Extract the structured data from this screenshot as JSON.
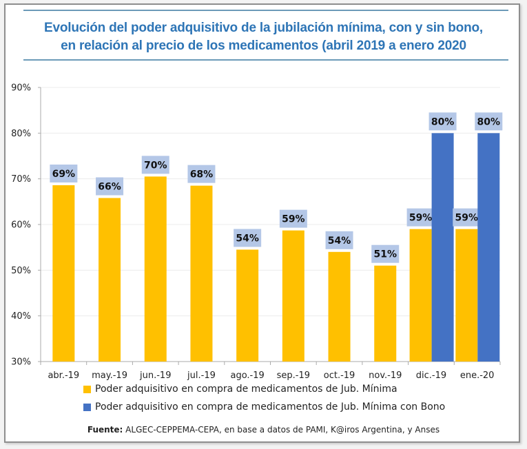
{
  "chart_data": {
    "type": "bar",
    "title": "Evolución del poder adquisitivo de la jubilación mínima, con y sin bono, en relación al precio de los medicamentos (abril 2019 a enero 2020",
    "title_lines": [
      "Evolución del poder adquisitivo de la jubilación mínima, con y sin bono,",
      "en relación al precio de los medicamentos (abril 2019 a enero 2020"
    ],
    "categories": [
      "abr.-19",
      "may.-19",
      "jun.-19",
      "jul.-19",
      "ago.-19",
      "sep.-19",
      "oct.-19",
      "nov.-19",
      "dic.-19",
      "ene.-20"
    ],
    "series": [
      {
        "name": "Poder adquisitivo en compra de medicamentos de Jub. Mínima",
        "color": "#ffc000",
        "values": [
          68.6,
          65.8,
          70.5,
          68.5,
          54.5,
          58.7,
          54.0,
          51.0,
          59.0,
          59.0
        ],
        "labels": [
          "69%",
          "66%",
          "70%",
          "68%",
          "54%",
          "59%",
          "54%",
          "51%",
          "59%",
          "59%"
        ]
      },
      {
        "name": "Poder adquisitivo en compra de medicamentos de Jub. Mínima con Bono",
        "color": "#4472c4",
        "values": [
          null,
          null,
          null,
          null,
          null,
          null,
          null,
          null,
          80.0,
          80.0
        ],
        "labels": [
          null,
          null,
          null,
          null,
          null,
          null,
          null,
          null,
          "80%",
          "80%"
        ]
      }
    ],
    "xlabel": "",
    "ylabel": "",
    "ylim": [
      30,
      90
    ],
    "yticks": [
      30,
      40,
      50,
      60,
      70,
      80,
      90
    ],
    "ytick_labels": [
      "30%",
      "40%",
      "50%",
      "60%",
      "70%",
      "80%",
      "90%"
    ],
    "grid": true,
    "legend_position": "bottom",
    "data_label_bg": "#b4c7e7"
  },
  "source": {
    "label": "Fuente:",
    "text": " ALGEC-CEPPEMA-CEPA, en base a datos de PAMI, K@iros Argentina, y Anses"
  }
}
